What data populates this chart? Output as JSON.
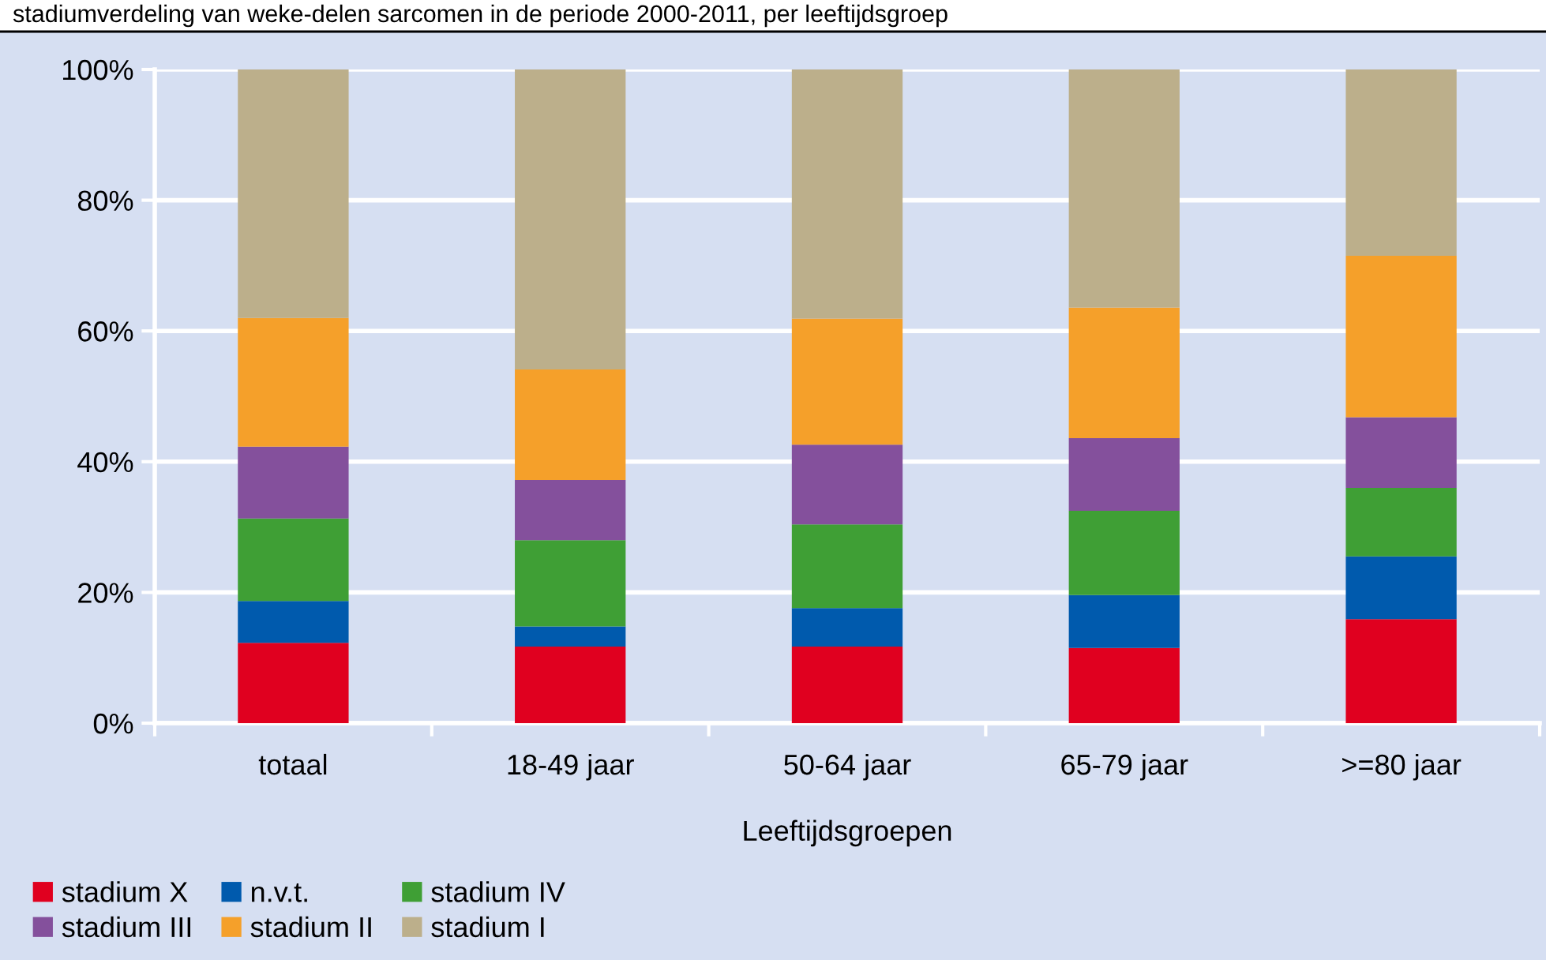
{
  "chart_data": {
    "type": "bar",
    "stacked": true,
    "title": "stadiumverdeling van weke-delen sarcomen in de periode 2000-2011, per leeftijdsgroep",
    "xlabel": "Leeftijdsgroepen",
    "categories": [
      "totaal",
      "18-49 jaar",
      "50-64 jaar",
      "65-79 jaar",
      ">=80 jaar"
    ],
    "series": [
      {
        "name": "stadium X",
        "color": "#e0001f",
        "values": [
          12.3,
          11.7,
          11.7,
          11.5,
          15.9
        ]
      },
      {
        "name": "n.v.t.",
        "color": "#005aad",
        "values": [
          6.4,
          3.1,
          5.9,
          8.1,
          9.6
        ]
      },
      {
        "name": "stadium IV",
        "color": "#3f9f35",
        "values": [
          12.6,
          13.2,
          12.8,
          12.9,
          10.5
        ]
      },
      {
        "name": "stadium III",
        "color": "#84509c",
        "values": [
          11.0,
          9.2,
          12.2,
          11.1,
          10.8
        ]
      },
      {
        "name": "stadium II",
        "color": "#f5a02a",
        "values": [
          19.7,
          16.9,
          19.3,
          20.0,
          24.7
        ]
      },
      {
        "name": "stadium I",
        "color": "#bcaf8b",
        "values": [
          38.0,
          45.9,
          38.1,
          36.4,
          28.5
        ]
      }
    ],
    "ylim": [
      0,
      100
    ],
    "yticks": [
      {
        "value": 0,
        "label": "0%"
      },
      {
        "value": 20,
        "label": "20%"
      },
      {
        "value": 40,
        "label": "40%"
      },
      {
        "value": 60,
        "label": "60%"
      },
      {
        "value": 80,
        "label": "80%"
      },
      {
        "value": 100,
        "label": "100%"
      }
    ],
    "grid": "y",
    "legend": "bottom left"
  }
}
